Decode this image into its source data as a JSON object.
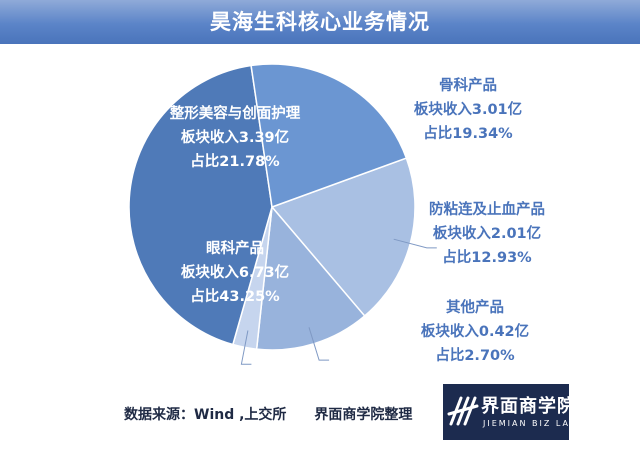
{
  "title": "昊海生科核心业务情况",
  "footer": {
    "source": "数据来源：Wind ,上交所　　界面商学院整理"
  },
  "logo": {
    "cn": "界面商学院",
    "en": "JIEMIAN BIZ LAB"
  },
  "chart_data": {
    "type": "pie",
    "title": "昊海生科核心业务情况",
    "start_angle_deg": -20,
    "direction": "clockwise",
    "slices": [
      {
        "name": "骨科产品",
        "revenue": "板块收入3.01亿",
        "share": "占比19.34%",
        "value": 19.34,
        "color": "#a9c0e3",
        "label_position": "outside"
      },
      {
        "name": "防粘连及止血产品",
        "revenue": "板块收入2.01亿",
        "share": "占比12.93%",
        "value": 12.93,
        "color": "#98b3dc",
        "label_position": "outside"
      },
      {
        "name": "其他产品",
        "revenue": "板块收入0.42亿",
        "share": "占比2.70%",
        "value": 2.7,
        "color": "#c6d5ee",
        "label_position": "outside"
      },
      {
        "name": "眼科产品",
        "revenue": "板块收入6.73亿",
        "share": "占比43.25%",
        "value": 43.25,
        "color": "#4f7ab8",
        "label_position": "inside"
      },
      {
        "name": "整形美容与创面护理",
        "revenue": "板块收入3.39亿",
        "share": "占比21.78%",
        "value": 21.78,
        "color": "#6b96d2",
        "label_position": "inside"
      }
    ]
  }
}
